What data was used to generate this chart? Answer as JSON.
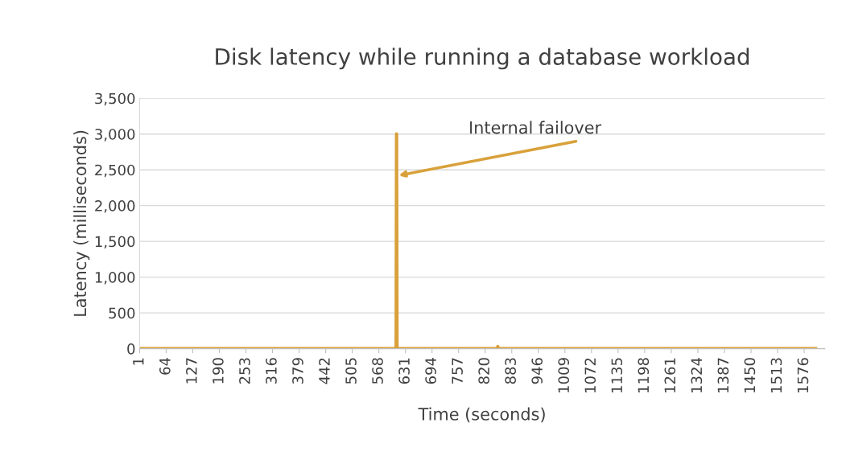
{
  "chart_data": {
    "type": "line",
    "title": "Disk latency while running a database workload",
    "xlabel": "Time (seconds)",
    "ylabel": "Latency (milliseconds)",
    "x": [
      1,
      609,
      610,
      611,
      849,
      850,
      851,
      1603
    ],
    "series": [
      {
        "color": "#d9a13b",
        "values": [
          0,
          0,
          3000,
          0,
          0,
          30,
          0,
          0
        ]
      }
    ],
    "xlim": [
      1,
      1625
    ],
    "xticks": [
      1,
      64,
      127,
      190,
      253,
      316,
      379,
      442,
      505,
      568,
      631,
      694,
      757,
      820,
      883,
      946,
      1009,
      1072,
      1135,
      1198,
      1261,
      1324,
      1387,
      1450,
      1513,
      1576
    ],
    "ylim": [
      0,
      3500
    ],
    "yticks": [
      0,
      {
        "value": 500,
        "label": "500"
      },
      {
        "value": 1000,
        "label": "1,000"
      },
      {
        "value": 1500,
        "label": "1,500"
      },
      {
        "value": 2000,
        "label": "2,000"
      },
      {
        "value": 2500,
        "label": "2,500"
      },
      {
        "value": 3000,
        "label": "3,000"
      },
      {
        "value": 3500,
        "label": "3,500"
      }
    ],
    "grid": "y",
    "marker": "none",
    "line_style": "solid",
    "annotations": [
      "Internal failover"
    ]
  }
}
